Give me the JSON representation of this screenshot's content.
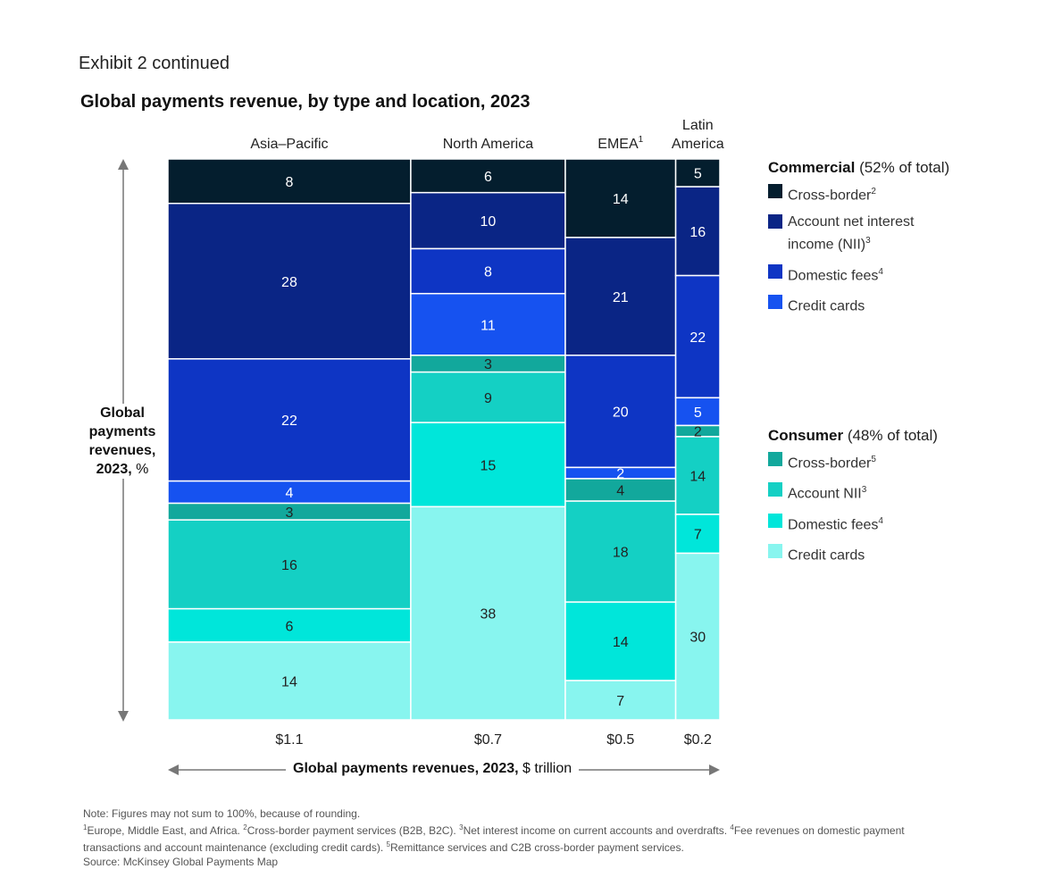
{
  "header": {
    "exhibit": "Exhibit 2 continued",
    "title": "Global payments revenue, by type and location, 2023"
  },
  "colors": {
    "commercial_cross_border": "#041e2e",
    "commercial_account_nii": "#0a2585",
    "commercial_domestic_fees": "#0e35c4",
    "commercial_credit_cards": "#1652f0",
    "consumer_cross_border": "#12a89c",
    "consumer_account_nii": "#14d0c4",
    "consumer_domestic_fees": "#00e6da",
    "consumer_credit_cards": "#88f5ef"
  },
  "legend": {
    "commercial": {
      "title_bold": "Commercial",
      "title_rest": "(52% of total)",
      "items": [
        {
          "label": "Cross-border",
          "sup": "2"
        },
        {
          "label": "Account net interest income (NII)",
          "sup": "3"
        },
        {
          "label": "Domestic fees",
          "sup": "4"
        },
        {
          "label": "Credit cards",
          "sup": ""
        }
      ]
    },
    "consumer": {
      "title_bold": "Consumer",
      "title_rest": "(48% of total)",
      "items": [
        {
          "label": "Cross-border",
          "sup": "5"
        },
        {
          "label": "Account NII",
          "sup": "3"
        },
        {
          "label": "Domestic fees",
          "sup": "4"
        },
        {
          "label": "Credit cards",
          "sup": ""
        }
      ]
    }
  },
  "axis": {
    "y_label_bold": "Global payments revenues, 2023,",
    "y_label_unit": "%",
    "x_label_bold": "Global payments revenues, 2023,",
    "x_label_unit": "$ trillion"
  },
  "chart_data": {
    "type": "marimekko",
    "title": "Global payments revenue, by type and location, 2023",
    "segments": [
      "Commercial cross-border",
      "Commercial account NII",
      "Commercial domestic fees",
      "Commercial credit cards",
      "Consumer cross-border",
      "Consumer account NII",
      "Consumer domestic fees",
      "Consumer credit cards"
    ],
    "columns": [
      {
        "name": "Asia–Pacific",
        "name_sup": "",
        "total": 1.1,
        "total_label": "$1.1",
        "values": [
          8,
          28,
          22,
          4,
          3,
          16,
          6,
          14
        ]
      },
      {
        "name": "North America",
        "name_sup": "",
        "total": 0.7,
        "total_label": "$0.7",
        "values": [
          6,
          10,
          8,
          11,
          3,
          9,
          15,
          38
        ]
      },
      {
        "name": "EMEA",
        "name_sup": "1",
        "total": 0.5,
        "total_label": "$0.5",
        "values": [
          14,
          21,
          20,
          2,
          4,
          18,
          14,
          7
        ]
      },
      {
        "name": "Latin America",
        "name_sup": "",
        "total": 0.2,
        "total_label": "$0.2",
        "values": [
          5,
          16,
          22,
          5,
          2,
          14,
          7,
          30
        ]
      }
    ],
    "xlabel": "Global payments revenues, 2023, $ trillion",
    "ylabel": "Global payments revenues, 2023, %"
  },
  "notes": {
    "note": "Note: Figures may not sum to 100%, because of rounding.",
    "footnote_1_sup": "1",
    "footnote_1": "Europe, Middle East, and Africa.",
    "footnote_2_sup": "2",
    "footnote_2": "Cross-border payment services (B2B, B2C).",
    "footnote_3_sup": "3",
    "footnote_3": "Net interest income on current accounts and overdrafts.",
    "footnote_4_sup": "4",
    "footnote_4": "Fee revenues on domestic payment transactions and account maintenance (excluding credit cards).",
    "footnote_5_sup": "5",
    "footnote_5": "Remittance services and C2B cross-border payment services.",
    "source": "Source: McKinsey Global Payments Map"
  }
}
